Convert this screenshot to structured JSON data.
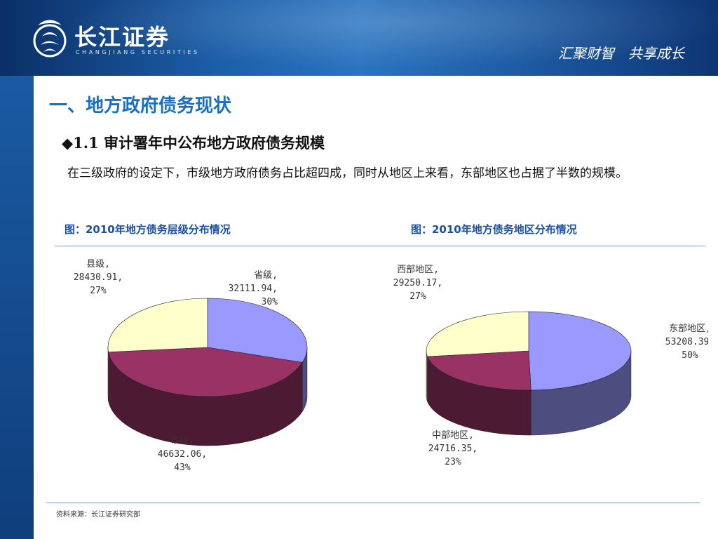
{
  "header": {
    "logo_cn": "长江证券",
    "logo_en": "CHANGJIANG SECURITIES",
    "slogan": "汇聚财智　共享成长"
  },
  "title": "一、地方政府债务现状",
  "subtitle": "◆1.1 审计署年中公布地方政府债务规模",
  "body_text": "在三级政府的设定下，市级地方政府债务占比超四成，同时从地区上来看，东部地区也占据了半数的规模。",
  "fig_left_caption": "图：2010年地方债务层级分布情况",
  "fig_right_caption": "图：2010年地方债务地区分布情况",
  "source": "资料来源：长江证券研究部",
  "colors": {
    "blue_slice": "#9999ff",
    "maroon_slice": "#993366",
    "cream_slice": "#ffffcc",
    "title_blue": "#1a6fbe"
  },
  "chart_data": [
    {
      "type": "pie",
      "style": "3d",
      "title": "",
      "slices": [
        {
          "name": "省级",
          "value": 32111.94,
          "percent": "30%",
          "color": "#9999ff"
        },
        {
          "name": "市级",
          "value": 46632.06,
          "percent": "43%",
          "color": "#993366"
        },
        {
          "name": "县级",
          "value": 28430.91,
          "percent": "27%",
          "color": "#ffffcc"
        }
      ],
      "labels": [
        {
          "lines": [
            "省级,",
            "32111.94,",
            "30%"
          ],
          "align": "end",
          "slice": 0
        },
        {
          "lines": [
            "市级,",
            "46632.06,",
            "43%"
          ],
          "align": "middle",
          "slice": 1
        },
        {
          "lines": [
            "县级,",
            "28430.91,",
            "27%"
          ],
          "align": "middle",
          "slice": 2
        }
      ]
    },
    {
      "type": "pie",
      "style": "3d",
      "title": "",
      "slices": [
        {
          "name": "东部地区",
          "value": 53208.39,
          "percent": "50%",
          "color": "#9999ff"
        },
        {
          "name": "中部地区",
          "value": 24716.35,
          "percent": "23%",
          "color": "#993366"
        },
        {
          "name": "西部地区",
          "value": 29250.17,
          "percent": "27%",
          "color": "#ffffcc"
        }
      ],
      "labels": [
        {
          "lines": [
            "东部地区,",
            "53208.39,",
            "50%"
          ],
          "align": "middle",
          "slice": 0
        },
        {
          "lines": [
            "中部地区,",
            "24716.35,",
            "23%"
          ],
          "align": "middle",
          "slice": 1
        },
        {
          "lines": [
            "西部地区,",
            "29250.17,",
            "27%"
          ],
          "align": "middle",
          "slice": 2
        }
      ]
    }
  ]
}
